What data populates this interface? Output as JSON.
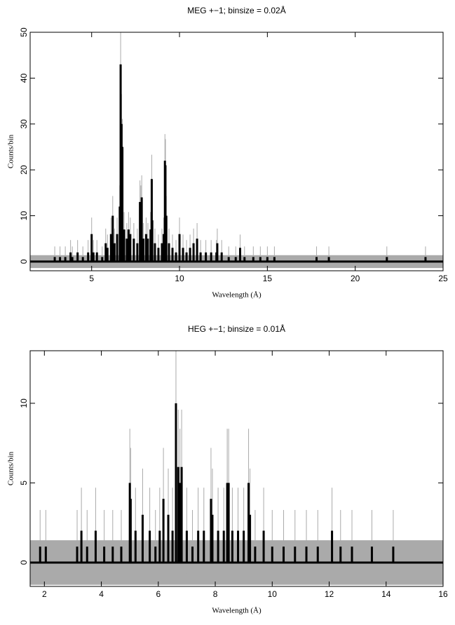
{
  "chart_data": [
    {
      "type": "step",
      "title": "MEG +−1; binsize = 0.02Å",
      "xlabel": "Wavelength (Å)",
      "ylabel": "Counts/bin",
      "x": [
        2.9,
        3.2,
        3.5,
        3.8,
        3.9,
        4.2,
        4.5,
        4.8,
        5.0,
        5.1,
        5.3,
        5.6,
        5.8,
        5.9,
        6.1,
        6.2,
        6.3,
        6.45,
        6.6,
        6.65,
        6.7,
        6.75,
        6.85,
        7.0,
        7.1,
        7.2,
        7.4,
        7.6,
        7.75,
        7.8,
        7.85,
        7.95,
        8.1,
        8.2,
        8.35,
        8.42,
        8.45,
        8.6,
        8.8,
        9.0,
        9.1,
        9.17,
        9.2,
        9.25,
        9.4,
        9.6,
        9.8,
        10.0,
        10.2,
        10.4,
        10.6,
        10.8,
        11.0,
        11.2,
        11.5,
        11.8,
        12.1,
        12.15,
        12.4,
        12.8,
        13.2,
        13.45,
        13.7,
        14.2,
        14.6,
        15.0,
        15.4,
        17.8,
        18.5,
        21.8,
        24.0
      ],
      "values": [
        1,
        1,
        1,
        2,
        1,
        2,
        1,
        2,
        6,
        2,
        2,
        1,
        4,
        3,
        6,
        10,
        4,
        6,
        12,
        43,
        30,
        25,
        7,
        5,
        7,
        6,
        5,
        4,
        13,
        12,
        14,
        5,
        6,
        5,
        7,
        18,
        9,
        4,
        3,
        4,
        6,
        22,
        21,
        10,
        4,
        3,
        2,
        6,
        3,
        2,
        3,
        4,
        5,
        2,
        2,
        2,
        2,
        4,
        2,
        1,
        1,
        3,
        1,
        1,
        1,
        1,
        1,
        1,
        1,
        1,
        1
      ],
      "errors": [
        2.3,
        2.3,
        2.3,
        2.7,
        2.3,
        2.7,
        2.3,
        2.7,
        3.6,
        2.7,
        2.7,
        2.3,
        3.2,
        2.9,
        3.6,
        4.3,
        3.2,
        3.6,
        4.6,
        7.6,
        6.5,
        6.1,
        3.8,
        3.4,
        3.8,
        3.6,
        3.4,
        3.2,
        4.7,
        4.6,
        4.8,
        3.4,
        3.6,
        3.4,
        3.8,
        5.3,
        4.1,
        3.2,
        2.9,
        3.2,
        3.6,
        5.8,
        5.7,
        4.3,
        3.2,
        2.9,
        2.7,
        3.6,
        2.9,
        2.7,
        2.9,
        3.2,
        3.4,
        2.7,
        2.7,
        2.7,
        2.7,
        3.2,
        2.7,
        2.3,
        2.3,
        2.9,
        2.3,
        2.3,
        2.3,
        2.3,
        2.3,
        2.3,
        2.3,
        2.3,
        2.3
      ],
      "zero_error": 1.4,
      "color": "#000000",
      "error_color": "#aaaaaa",
      "xlim": [
        1.5,
        25
      ],
      "ylim": [
        -2,
        50
      ],
      "xticks": [
        5,
        10,
        15,
        20,
        25
      ],
      "yticks": [
        0,
        10,
        20,
        30,
        40,
        50
      ]
    },
    {
      "type": "step",
      "title": "HEG +−1; binsize = 0.01Å",
      "xlabel": "Wavelength (Å)",
      "ylabel": "Counts/bin",
      "x": [
        1.85,
        2.05,
        3.15,
        3.3,
        3.5,
        3.8,
        4.1,
        4.4,
        4.7,
        5.0,
        5.03,
        5.2,
        5.45,
        5.7,
        5.9,
        6.05,
        6.18,
        6.35,
        6.5,
        6.62,
        6.7,
        6.76,
        6.82,
        7.0,
        7.2,
        7.4,
        7.6,
        7.85,
        7.9,
        8.1,
        8.3,
        8.42,
        8.47,
        8.6,
        8.8,
        9.0,
        9.17,
        9.22,
        9.4,
        9.7,
        10.0,
        10.4,
        10.8,
        11.2,
        11.6,
        12.1,
        12.4,
        12.8,
        13.5,
        14.25
      ],
      "values": [
        1,
        1,
        1,
        2,
        1,
        2,
        1,
        1,
        1,
        5,
        4,
        2,
        3,
        2,
        1,
        2,
        4,
        3,
        2,
        10,
        6,
        5,
        6,
        2,
        1,
        2,
        2,
        4,
        3,
        2,
        2,
        5,
        5,
        2,
        2,
        2,
        5,
        3,
        1,
        2,
        1,
        1,
        1,
        1,
        1,
        2,
        1,
        1,
        1,
        1
      ],
      "errors": [
        2.3,
        2.3,
        2.3,
        2.7,
        2.3,
        2.7,
        2.3,
        2.3,
        2.3,
        3.4,
        3.2,
        2.7,
        2.9,
        2.7,
        2.3,
        2.7,
        3.2,
        2.9,
        2.7,
        4.3,
        3.6,
        3.4,
        3.6,
        2.7,
        2.3,
        2.7,
        2.7,
        3.2,
        2.9,
        2.7,
        2.7,
        3.4,
        3.4,
        2.7,
        2.7,
        2.7,
        3.4,
        2.9,
        2.3,
        2.7,
        2.3,
        2.3,
        2.3,
        2.3,
        2.3,
        2.7,
        2.3,
        2.3,
        2.3,
        2.3
      ],
      "zero_error": 1.4,
      "color": "#000000",
      "error_color": "#aaaaaa",
      "xlim": [
        1.5,
        16
      ],
      "ylim": [
        -1.5,
        13.3
      ],
      "xticks": [
        2,
        4,
        6,
        8,
        10,
        12,
        14,
        16
      ],
      "yticks": [
        0,
        5,
        10
      ]
    }
  ]
}
